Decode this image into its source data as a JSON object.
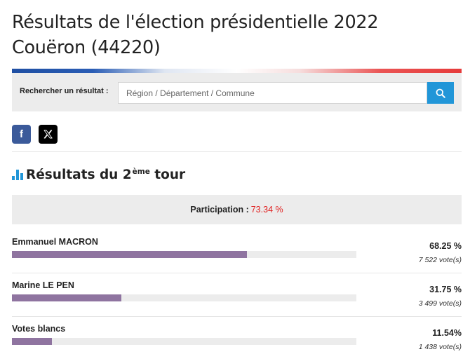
{
  "page": {
    "title_line1": "Résultats de l'élection présidentielle 2022",
    "title_line2": "Couëron (44220)"
  },
  "search": {
    "label": "Rechercher un résultat :",
    "placeholder": "Région / Département / Commune",
    "button_icon": "search-icon"
  },
  "share": {
    "facebook_glyph": "f",
    "facebook_icon": "facebook-icon",
    "x_icon": "x-twitter-icon"
  },
  "section": {
    "title_prefix": "Résultats du 2",
    "title_sup": "ème",
    "title_suffix": " tour",
    "icon": "bar-chart-icon"
  },
  "participation": {
    "label": "Participation :",
    "value": "73.34 %"
  },
  "colors": {
    "accent_blue": "#2196d8",
    "bar_fill": "#8f74a0",
    "participation_value": "#e02020",
    "flag_blue": "#1f4fa3",
    "flag_red": "#e63b3b"
  },
  "results": [
    {
      "name": "Emmanuel MACRON",
      "percent": "68.25 %",
      "votes": "7 522 vote(s)",
      "share": 68.25
    },
    {
      "name": "Marine LE PEN",
      "percent": "31.75 %",
      "votes": "3 499 vote(s)",
      "share": 31.75
    },
    {
      "name": "Votes blancs",
      "percent": "11.54%",
      "votes": "1 438 vote(s)",
      "share": 11.54
    }
  ]
}
